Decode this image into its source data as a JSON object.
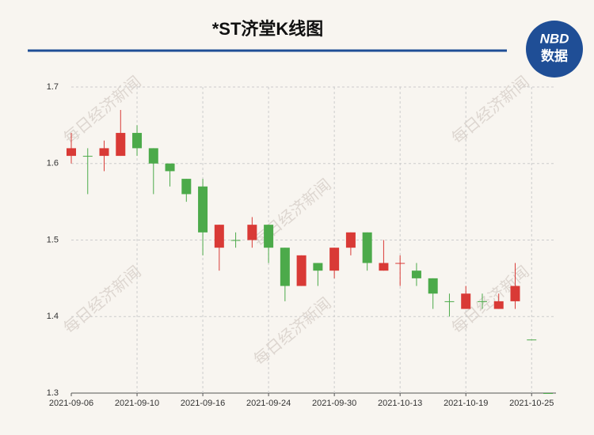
{
  "chart_data": {
    "type": "candlestick",
    "title": "*ST济堂K线图",
    "logo": {
      "top": "NBD",
      "bottom": "数据"
    },
    "watermark": "每日经济新闻",
    "categories": [
      "2021-09-06",
      null,
      null,
      null,
      "2021-09-10",
      null,
      null,
      null,
      "2021-09-16",
      null,
      null,
      null,
      "2021-09-24",
      null,
      null,
      null,
      "2021-09-30",
      null,
      null,
      null,
      "2021-10-13",
      null,
      null,
      null,
      "2021-10-19",
      null,
      null,
      null,
      "2021-10-25",
      null
    ],
    "open": [
      1.61,
      1.61,
      1.61,
      1.61,
      1.64,
      1.62,
      1.6,
      1.58,
      1.57,
      1.49,
      1.5,
      1.5,
      1.52,
      1.49,
      1.44,
      1.47,
      1.46,
      1.49,
      1.51,
      1.46,
      1.47,
      1.46,
      1.45,
      1.42,
      1.41,
      1.42,
      1.41,
      1.42,
      1.37,
      1.3
    ],
    "high": [
      1.64,
      1.62,
      1.63,
      1.67,
      1.65,
      1.62,
      1.6,
      1.58,
      1.58,
      1.52,
      1.51,
      1.53,
      1.52,
      1.49,
      1.48,
      1.47,
      1.49,
      1.51,
      1.51,
      1.5,
      1.48,
      1.47,
      1.45,
      1.43,
      1.44,
      1.43,
      1.43,
      1.47,
      1.37,
      1.3
    ],
    "low": [
      1.6,
      1.56,
      1.59,
      1.61,
      1.61,
      1.56,
      1.57,
      1.55,
      1.48,
      1.46,
      1.49,
      1.49,
      1.47,
      1.42,
      1.44,
      1.44,
      1.45,
      1.48,
      1.46,
      1.46,
      1.44,
      1.44,
      1.41,
      1.4,
      1.41,
      1.41,
      1.41,
      1.41,
      1.37,
      1.3
    ],
    "close": [
      1.62,
      1.61,
      1.62,
      1.64,
      1.62,
      1.6,
      1.59,
      1.56,
      1.51,
      1.52,
      1.5,
      1.52,
      1.49,
      1.44,
      1.48,
      1.46,
      1.49,
      1.51,
      1.47,
      1.47,
      1.47,
      1.45,
      1.43,
      1.42,
      1.43,
      1.42,
      1.42,
      1.44,
      1.37,
      1.3
    ],
    "up_color": "#d93a36",
    "down_color": "#4caa4a",
    "ylim": [
      1.3,
      1.7
    ],
    "yticks": [
      1.3,
      1.4,
      1.5,
      1.6,
      1.7
    ],
    "grid": true
  }
}
